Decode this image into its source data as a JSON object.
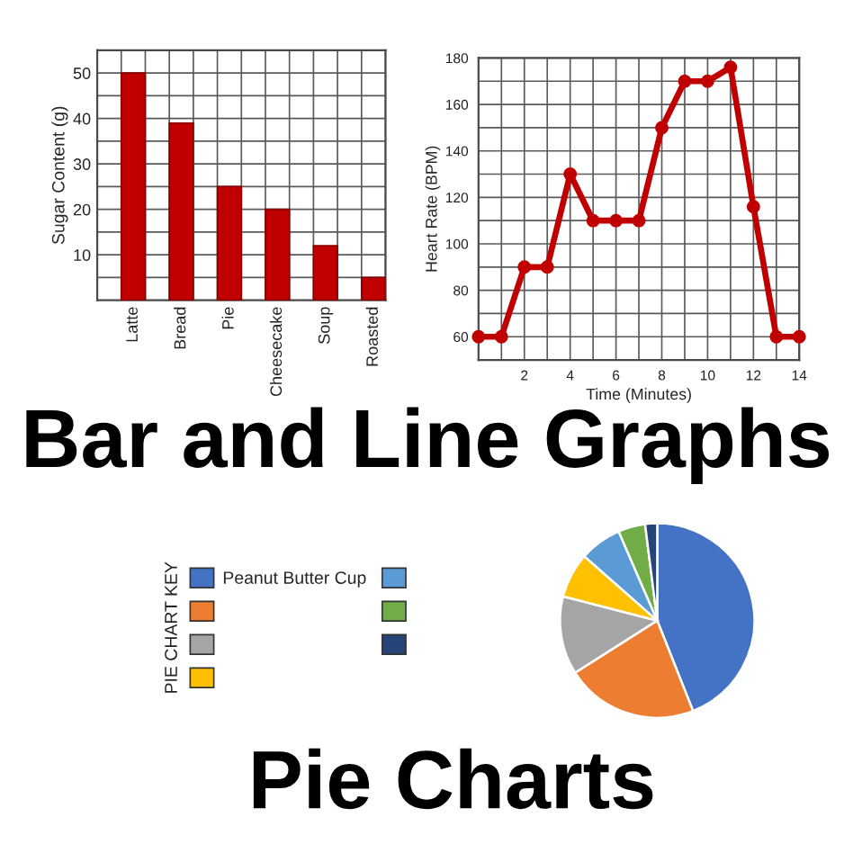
{
  "chart_data": [
    {
      "type": "bar",
      "ylabel": "Sugar Content (g)",
      "categories": [
        "Latte",
        "Bread",
        "Pie",
        "Cheesecake",
        "Soup",
        "Roasted"
      ],
      "values": [
        50,
        39,
        25,
        20,
        12,
        5
      ],
      "color": "#c00000",
      "ylim": [
        0,
        55
      ],
      "yticks": [
        {
          "value": 5,
          "label": null
        },
        10,
        {
          "value": 15,
          "label": null
        },
        20,
        {
          "value": 25,
          "label": null
        },
        30,
        {
          "value": 35,
          "label": null
        },
        40,
        {
          "value": 45,
          "label": null
        },
        50
      ],
      "grid": true
    },
    {
      "type": "line",
      "xlabel": "Time (Minutes)",
      "ylabel": "Heart Rate (BPM)",
      "x": [
        0,
        1,
        2,
        3,
        4,
        5,
        6,
        7,
        8,
        9,
        10,
        11,
        12,
        13,
        14
      ],
      "values": [
        60,
        60,
        90,
        90,
        130,
        110,
        110,
        110,
        150,
        170,
        170,
        176,
        116,
        60,
        60
      ],
      "color": "#c00000",
      "marker": "circle",
      "xlim": [
        0,
        14
      ],
      "xticks": [
        {
          "value": 1,
          "label": null
        },
        2,
        {
          "value": 3,
          "label": null
        },
        4,
        {
          "value": 5,
          "label": null
        },
        6,
        {
          "value": 7,
          "label": null
        },
        8,
        {
          "value": 9,
          "label": null
        },
        10,
        {
          "value": 11,
          "label": null
        },
        12,
        {
          "value": 13,
          "label": null
        },
        14
      ],
      "ylim": [
        50,
        180
      ],
      "yticks": [
        60,
        {
          "value": 70,
          "label": null
        },
        80,
        {
          "value": 90,
          "label": null
        },
        100,
        {
          "value": 110,
          "label": null
        },
        120,
        {
          "value": 130,
          "label": null
        },
        140,
        {
          "value": 150,
          "label": null
        },
        160,
        {
          "value": 170,
          "label": null
        },
        180
      ],
      "grid": true
    },
    {
      "type": "other",
      "title": "Bar and Line Graphs"
    },
    {
      "type": "pie",
      "categories": [
        "Peanut Butter Cup",
        null,
        null,
        null,
        null,
        null,
        null
      ],
      "values": [
        44,
        22,
        13,
        7.5,
        7,
        4.5,
        2
      ],
      "colors": [
        "#4472c4",
        "#ed7d31",
        "#a5a5a5",
        "#ffc000",
        "#5b9bd5",
        "#70ad47",
        "#264478"
      ],
      "legend_title": "PIE CHART KEY",
      "legend": "left"
    },
    {
      "type": "other",
      "title": "Pie Charts"
    }
  ]
}
